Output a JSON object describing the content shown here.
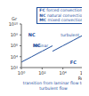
{
  "chart_data": {
    "type": "line",
    "log": true,
    "x_label": "Re",
    "y_label": "Gr",
    "xlim": [
      1,
      1000000
    ],
    "xticks": [
      {
        "value": 1,
        "label": "10⁰"
      },
      {
        "value": 100,
        "label": "10²"
      },
      {
        "value": 10000,
        "label": "10⁴"
      },
      {
        "value": 1000000,
        "label": "10⁶"
      }
    ],
    "ylim": [
      100,
      10000000000
    ],
    "yticks": [
      {
        "value": 100,
        "label": "10²"
      },
      {
        "value": 10000,
        "label": "10⁴"
      },
      {
        "value": 1000000,
        "label": "10⁶"
      },
      {
        "value": 100000000,
        "label": "10⁸"
      },
      {
        "value": 10000000000,
        "label": "10¹⁰"
      }
    ],
    "series": [
      {
        "name": "turbulent",
        "color": "#1f4e9c",
        "x": [
          1000,
          10000,
          100000,
          1000000
        ],
        "values": [
          100000,
          1000000,
          10000000,
          100000000
        ]
      },
      {
        "name": "laminar",
        "color": "#1f4e9c",
        "x": [
          1,
          10,
          100,
          1000
        ],
        "values": [
          1000,
          10000,
          100000,
          1000000
        ]
      }
    ],
    "annotations": [
      {
        "text": "FC",
        "x": 100000,
        "y": 1000
      },
      {
        "text": "NC",
        "x": 10,
        "y": 100000000
      },
      {
        "text": "MC",
        "x": 30,
        "y": 1000000
      }
    ],
    "key": [
      {
        "abbr": "FC",
        "text": "forced convection"
      },
      {
        "abbr": "NC",
        "text": "natural convection"
      },
      {
        "abbr": "MC",
        "text": "mixed convection"
      }
    ],
    "note": "transition from laminar flow to turbulent flow",
    "color": "#1f4e9c"
  }
}
